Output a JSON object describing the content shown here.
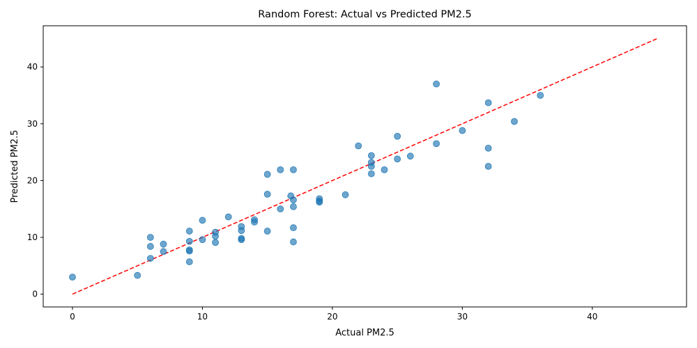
{
  "chart_data": {
    "type": "scatter",
    "title": "Random Forest: Actual vs Predicted PM2.5",
    "xlabel": "Actual PM2.5",
    "ylabel": "Predicted PM2.5",
    "xlim": [
      -2.25,
      47.25
    ],
    "ylim": [
      -2.25,
      47.25
    ],
    "xticks": [
      0,
      10,
      20,
      30,
      40
    ],
    "yticks": [
      0,
      10,
      20,
      30,
      40
    ],
    "grid": false,
    "legend": "none",
    "point_color": "#1f77b4",
    "point_alpha": 0.65,
    "reference_line": {
      "x": [
        0,
        45
      ],
      "y": [
        0,
        45
      ],
      "color": "#ff0000",
      "style": "dashed"
    },
    "series": [
      {
        "points": [
          [
            0,
            3.0
          ],
          [
            5,
            3.3
          ],
          [
            6,
            10.0
          ],
          [
            6,
            8.4
          ],
          [
            6,
            6.3
          ],
          [
            7,
            8.8
          ],
          [
            7,
            7.5
          ],
          [
            9,
            11.1
          ],
          [
            9,
            9.3
          ],
          [
            9,
            7.8
          ],
          [
            9,
            7.6
          ],
          [
            9,
            5.7
          ],
          [
            10,
            13.0
          ],
          [
            10,
            9.6
          ],
          [
            11,
            10.9
          ],
          [
            11,
            10.2
          ],
          [
            11,
            9.1
          ],
          [
            12,
            13.6
          ],
          [
            13,
            11.9
          ],
          [
            13,
            11.2
          ],
          [
            13,
            9.8
          ],
          [
            13,
            9.6
          ],
          [
            14,
            13.1
          ],
          [
            14,
            12.7
          ],
          [
            15,
            21.1
          ],
          [
            15,
            17.6
          ],
          [
            15,
            11.1
          ],
          [
            16,
            21.9
          ],
          [
            16,
            15.0
          ],
          [
            16.8,
            17.3
          ],
          [
            17,
            21.9
          ],
          [
            17,
            16.6
          ],
          [
            17,
            15.4
          ],
          [
            17,
            11.7
          ],
          [
            17,
            9.2
          ],
          [
            19,
            16.8
          ],
          [
            19,
            16.4
          ],
          [
            19,
            16.2
          ],
          [
            21,
            17.5
          ],
          [
            22,
            26.1
          ],
          [
            23,
            24.4
          ],
          [
            23,
            23.2
          ],
          [
            23,
            22.5
          ],
          [
            23,
            21.2
          ],
          [
            24,
            21.9
          ],
          [
            25,
            27.8
          ],
          [
            25,
            23.8
          ],
          [
            26,
            24.3
          ],
          [
            28,
            37.0
          ],
          [
            28,
            26.5
          ],
          [
            30,
            28.8
          ],
          [
            32,
            33.7
          ],
          [
            32,
            25.7
          ],
          [
            32,
            22.5
          ],
          [
            34,
            30.4
          ],
          [
            36,
            35.0
          ]
        ]
      }
    ]
  }
}
